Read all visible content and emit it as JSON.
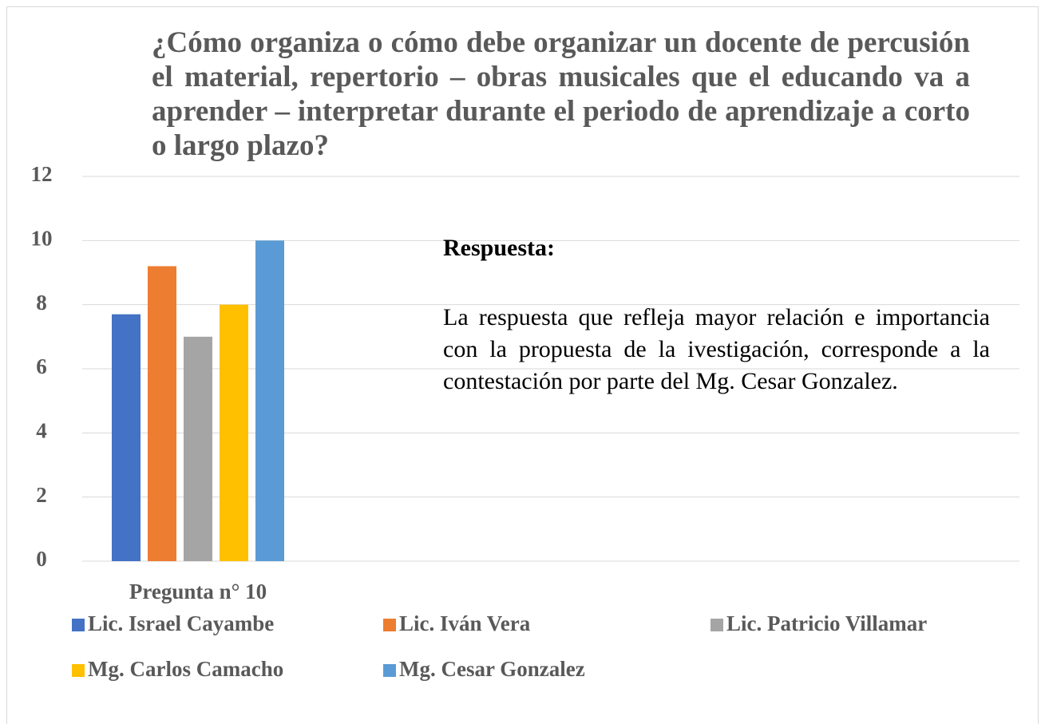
{
  "chart_data": {
    "type": "bar",
    "title": "¿Cómo organiza o cómo debe organizar un docente de percusión el material, repertorio – obras musicales que el educando va a aprender – interpretar durante el periodo de aprendizaje a corto o largo plazo?",
    "annotation_title": "Respuesta:",
    "annotation": "La respuesta que refleja mayor relación e importancia   con la propuesta de la ivestigación, corresponde a la contestación por parte del Mg. Cesar Gonzalez.",
    "categories": [
      "Pregunta n° 10"
    ],
    "series": [
      {
        "name": "Lic. Israel Cayambe",
        "color": "#4472c4",
        "values": [
          7.7
        ]
      },
      {
        "name": "Lic. Iván Vera",
        "color": "#ed7d31",
        "values": [
          9.2
        ]
      },
      {
        "name": "Lic. Patricio Villamar",
        "color": "#a5a5a5",
        "values": [
          7.0
        ]
      },
      {
        "name": "Mg. Carlos Camacho",
        "color": "#ffc000",
        "values": [
          8.0
        ]
      },
      {
        "name": "Mg. Cesar Gonzalez",
        "color": "#5b9bd5",
        "values": [
          10
        ]
      }
    ],
    "ylim": [
      0,
      12
    ],
    "yticks": [
      0,
      2,
      4,
      6,
      8,
      10,
      12
    ],
    "grid": true,
    "legend": "bottom"
  }
}
